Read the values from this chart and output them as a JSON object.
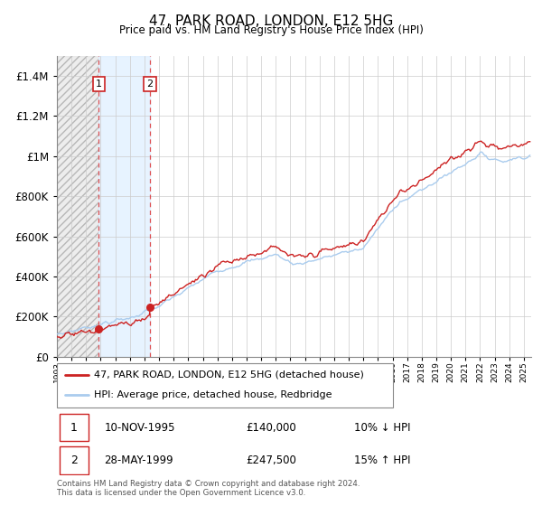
{
  "title": "47, PARK ROAD, LONDON, E12 5HG",
  "subtitle": "Price paid vs. HM Land Registry's House Price Index (HPI)",
  "legend_line1": "47, PARK ROAD, LONDON, E12 5HG (detached house)",
  "legend_line2": "HPI: Average price, detached house, Redbridge",
  "sale1_label": "1",
  "sale1_date": "10-NOV-1995",
  "sale1_price": "£140,000",
  "sale1_hpi": "10% ↓ HPI",
  "sale1_year": 1995.87,
  "sale1_value": 140000,
  "sale2_label": "2",
  "sale2_date": "28-MAY-1999",
  "sale2_price": "£247,500",
  "sale2_hpi": "15% ↑ HPI",
  "sale2_year": 1999.38,
  "sale2_value": 247500,
  "hpi_line_color": "#aaccee",
  "price_line_color": "#cc2222",
  "sale_dot_color": "#cc2222",
  "shaded_region_color": "#ddeeff",
  "footnote": "Contains HM Land Registry data © Crown copyright and database right 2024.\nThis data is licensed under the Open Government Licence v3.0.",
  "ylim_max": 1500000,
  "xmin": 1993,
  "xmax": 2025.5
}
